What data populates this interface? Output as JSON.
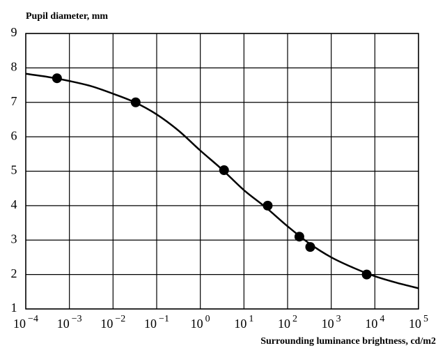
{
  "chart_data": {
    "type": "line",
    "ylabel": "Pupil diameter, mm",
    "xlabel": "Surrounding luminance brightness, cd/m2",
    "xscale": "log",
    "grid": true,
    "xlim": [
      0.0001,
      100000
    ],
    "ylim": [
      1,
      9
    ],
    "yticks": [
      1,
      2,
      3,
      4,
      5,
      6,
      7,
      8,
      9
    ],
    "xticks": [
      {
        "value": 0.0001,
        "label": "10−4"
      },
      {
        "value": 0.001,
        "label": "10−3"
      },
      {
        "value": 0.01,
        "label": "10−2"
      },
      {
        "value": 0.1,
        "label": "10−1"
      },
      {
        "value": 1,
        "label": "100"
      },
      {
        "value": 10,
        "label": "101"
      },
      {
        "value": 100,
        "label": "102"
      },
      {
        "value": 1000,
        "label": "103"
      },
      {
        "value": 10000,
        "label": "104"
      },
      {
        "value": 100000,
        "label": "105"
      }
    ],
    "series": [
      {
        "type": "line",
        "color": "#000000",
        "x": [
          0.0001,
          0.000316,
          0.001,
          0.00316,
          0.01,
          0.0316,
          0.1,
          0.316,
          1,
          3.16,
          10,
          31.6,
          100,
          316,
          1000,
          3160,
          10000,
          31600,
          100000
        ],
        "values": [
          7.83,
          7.74,
          7.62,
          7.47,
          7.25,
          7.0,
          6.65,
          6.18,
          5.6,
          5.05,
          4.45,
          3.95,
          3.4,
          2.9,
          2.5,
          2.2,
          1.95,
          1.76,
          1.6
        ]
      },
      {
        "type": "scatter",
        "color": "#000000",
        "x": [
          0.00052,
          0.033,
          3.5,
          35,
          186,
          330,
          6500
        ],
        "values": [
          7.7,
          7.0,
          5.03,
          4.0,
          3.1,
          2.8,
          2.0
        ]
      }
    ]
  }
}
